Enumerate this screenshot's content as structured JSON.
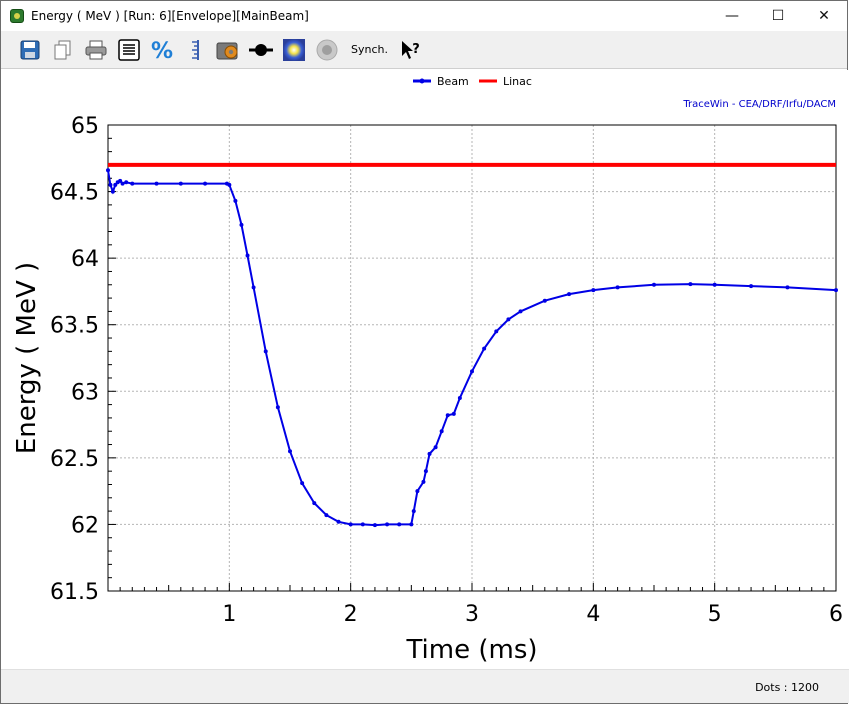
{
  "window": {
    "title": "Energy ( MeV ) [Run: 6][Envelope][MainBeam]",
    "minimize_glyph": "—",
    "maximize_glyph": "☐",
    "close_glyph": "✕"
  },
  "toolbar": {
    "synch_label": "Synch.",
    "icons": [
      "save-icon",
      "copy-icon",
      "print-icon",
      "text-list-icon",
      "percent-icon",
      "ruler-icon",
      "settings-icon",
      "line-marker-icon",
      "glow-icon",
      "disc-icon",
      "help-pointer-icon"
    ],
    "percent_glyph": "%",
    "help_glyph": "?"
  },
  "chart_data": {
    "type": "line",
    "title": "",
    "watermark": "TraceWin - CEA/DRF/Irfu/DACM",
    "xlabel": "Time (ms)",
    "ylabel": "Energy ( MeV )",
    "xlim": [
      0,
      6
    ],
    "ylim": [
      61.5,
      65
    ],
    "xticks": [
      "1",
      "2",
      "3",
      "4",
      "5",
      "6"
    ],
    "yticks": [
      "65",
      "64.5",
      "64",
      "63.5",
      "63",
      "62.5",
      "62",
      "61.5"
    ],
    "grid": true,
    "legend_placement": "top-center",
    "series": [
      {
        "name": "Beam",
        "color": "#0000e6",
        "markers": true,
        "x": [
          0.0,
          0.02,
          0.04,
          0.06,
          0.08,
          0.1,
          0.12,
          0.15,
          0.2,
          0.4,
          0.6,
          0.8,
          0.98,
          1.0,
          1.05,
          1.1,
          1.15,
          1.2,
          1.3,
          1.4,
          1.5,
          1.6,
          1.7,
          1.8,
          1.9,
          2.0,
          2.1,
          2.2,
          2.3,
          2.4,
          2.5,
          2.52,
          2.55,
          2.6,
          2.62,
          2.65,
          2.7,
          2.75,
          2.8,
          2.85,
          2.9,
          3.0,
          3.1,
          3.2,
          3.3,
          3.4,
          3.6,
          3.8,
          4.0,
          4.2,
          4.5,
          4.8,
          5.0,
          5.3,
          5.6,
          6.0
        ],
        "y": [
          64.66,
          64.55,
          64.5,
          64.55,
          64.57,
          64.58,
          64.56,
          64.57,
          64.56,
          64.56,
          64.56,
          64.56,
          64.56,
          64.55,
          64.43,
          64.25,
          64.02,
          63.78,
          63.3,
          62.88,
          62.55,
          62.31,
          62.16,
          62.07,
          62.02,
          62.0,
          62.0,
          61.995,
          62.0,
          62.0,
          62.0,
          62.1,
          62.25,
          62.32,
          62.4,
          62.53,
          62.58,
          62.7,
          62.82,
          62.83,
          62.95,
          63.15,
          63.32,
          63.45,
          63.54,
          63.6,
          63.68,
          63.73,
          63.76,
          63.78,
          63.8,
          63.805,
          63.8,
          63.79,
          63.78,
          63.76
        ]
      },
      {
        "name": "Linac",
        "color": "#ff0000",
        "markers": false,
        "x": [
          0.0,
          6.0
        ],
        "y": [
          64.7,
          64.7
        ]
      }
    ]
  },
  "status": {
    "dots": "Dots : 1200"
  }
}
